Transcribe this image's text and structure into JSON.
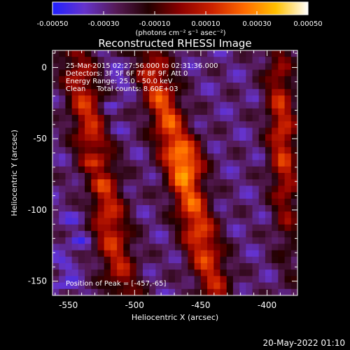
{
  "chart_data": {
    "type": "heatmap",
    "title": "Reconstructed RHESSI Image",
    "colorbar": {
      "ticks": [
        "-0.00050",
        "-0.00030",
        "-0.00010",
        "0.00010",
        "0.00030",
        "0.00050"
      ],
      "tick_values": [
        -0.0005,
        -0.0003,
        -0.0001,
        0.0001,
        0.0003,
        0.0005
      ],
      "range": [
        -0.0005,
        0.0005
      ],
      "colormap": [
        "#2020ff",
        "#6633cc",
        "#551a55",
        "#220000",
        "#8b0000",
        "#cc2200",
        "#ff6a00",
        "#ffc000",
        "#ffffff"
      ]
    },
    "colorbar_units_label": "(photons cm⁻² s⁻¹ asec⁻²)",
    "xlabel": "Heliocentric X (arcsec)",
    "ylabel": "Heliocentric Y (arcsec)",
    "xlim": [
      -562,
      -377
    ],
    "ylim": [
      -160,
      12
    ],
    "x_ticks": [
      -550,
      -500,
      -450,
      -400
    ],
    "y_ticks": [
      0,
      -50,
      -100,
      -150
    ],
    "annotations": [
      "25-Mar-2015 02:27:56.000 to 02:31:36.000",
      "Detectors: 3F 5F 6F 7F 8F 9F, Att 0",
      "Energy Range: 25.0 - 50.0 keV",
      "Clean     Total counts: 8.60E+03"
    ],
    "peak_label": "Position of Peak = [-457,-65]",
    "peak": [
      -457,
      -65
    ],
    "ridges": [
      {
        "x_top": -545,
        "x_bottom": -508,
        "amplitude": 0.0004
      },
      {
        "x_top": -490,
        "x_bottom": -438,
        "amplitude": 0.00047
      },
      {
        "x_top": -392,
        "x_bottom": -382,
        "amplitude": 0.0004
      }
    ]
  },
  "footer": {
    "date": "20-May-2022 01:10"
  }
}
